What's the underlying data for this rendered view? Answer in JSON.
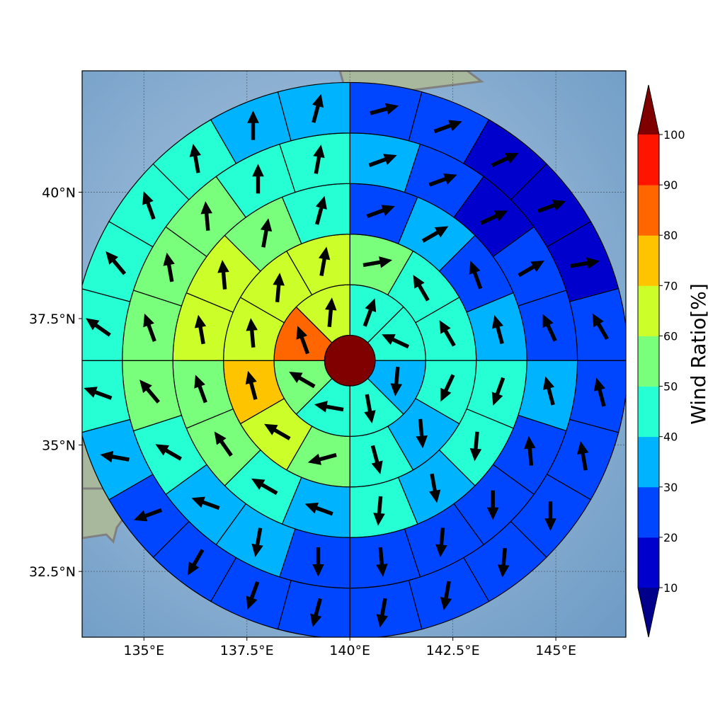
{
  "map": {
    "lon_range": [
      133.5,
      146.7
    ],
    "lat_range": [
      31.2,
      42.4
    ],
    "center": {
      "lon": 140.0,
      "lat": 36.67
    },
    "x_ticks": [
      {
        "value": 135.0,
        "label": "135°E"
      },
      {
        "value": 137.5,
        "label": "137.5°E"
      },
      {
        "value": 140.0,
        "label": "140°E"
      },
      {
        "value": 142.5,
        "label": "142.5°E"
      },
      {
        "value": 145.0,
        "label": "145°E"
      }
    ],
    "y_ticks": [
      {
        "value": 32.5,
        "label": "32.5°N"
      },
      {
        "value": 35.0,
        "label": "35°N"
      },
      {
        "value": 37.5,
        "label": "37.5°N"
      },
      {
        "value": 40.0,
        "label": "40°N"
      }
    ],
    "grid": true,
    "colors": {
      "sea": "#8fb2d3",
      "coastline": "#808080",
      "land": "#9fb59a"
    }
  },
  "colorbar": {
    "label": "Wind Ratio[%]",
    "boundaries": [
      10,
      20,
      30,
      40,
      50,
      60,
      70,
      80,
      90,
      100
    ],
    "tick_labels": [
      "10",
      "20",
      "30",
      "40",
      "50",
      "60",
      "70",
      "80",
      "90",
      "100"
    ],
    "colors": [
      "#0000cd",
      "#0045ff",
      "#00b3ff",
      "#25ffd3",
      "#7aff7d",
      "#ccff29",
      "#ffc400",
      "#ff6600",
      "#ff1400"
    ],
    "under_color": "#00008b",
    "over_color": "#800000",
    "extend": "both"
  },
  "chart_data": {
    "type": "polar_sector_map",
    "center_value": 100,
    "center_color": "#800000",
    "rings": [
      {
        "inner_deg": 0.5,
        "outer_deg": 1.5,
        "n_sectors": 8,
        "values": [
          43,
          45,
          38,
          43,
          48,
          55,
          82,
          61
        ],
        "arrow_directions_deg": [
          20,
          295,
          185,
          170,
          280,
          300,
          340,
          5
        ]
      },
      {
        "inner_deg": 1.5,
        "outer_deg": 2.5,
        "n_sectors": 12,
        "values": [
          58,
          44,
          43,
          46,
          38,
          44,
          55,
          64,
          71,
          65,
          61,
          64
        ],
        "arrow_directions_deg": [
          80,
          330,
          330,
          205,
          175,
          165,
          255,
          300,
          345,
          355,
          5,
          10
        ]
      },
      {
        "inner_deg": 2.5,
        "outer_deg": 3.5,
        "n_sectors": 16,
        "values": [
          22,
          35,
          22,
          35,
          43,
          44,
          32,
          43,
          38,
          45,
          52,
          55,
          62,
          63,
          54,
          44
        ],
        "arrow_directions_deg": [
          70,
          60,
          340,
          345,
          200,
          185,
          170,
          185,
          290,
          300,
          325,
          340,
          350,
          355,
          10,
          15
        ]
      },
      {
        "inner_deg": 3.5,
        "outer_deg": 4.5,
        "n_sectors": 20,
        "values": [
          36,
          20,
          15,
          20,
          22,
          30,
          22,
          22,
          25,
          26,
          25,
          33,
          33,
          42,
          55,
          57,
          56,
          57,
          44,
          40
        ],
        "arrow_directions_deg": [
          70,
          70,
          65,
          60,
          335,
          345,
          355,
          180,
          185,
          175,
          180,
          190,
          290,
          300,
          320,
          340,
          350,
          355,
          0,
          10
        ]
      },
      {
        "inner_deg": 4.5,
        "outer_deg": 5.5,
        "n_sectors": 24,
        "values": [
          23,
          22,
          13,
          13,
          16,
          20,
          21,
          20,
          20,
          26,
          25,
          21,
          20,
          21,
          20,
          24,
          36,
          43,
          46,
          44,
          44,
          43,
          36,
          36
        ],
        "arrow_directions_deg": [
          75,
          70,
          65,
          70,
          80,
          330,
          345,
          350,
          180,
          185,
          190,
          190,
          195,
          200,
          210,
          250,
          280,
          290,
          305,
          320,
          340,
          350,
          0,
          15
        ]
      }
    ]
  }
}
